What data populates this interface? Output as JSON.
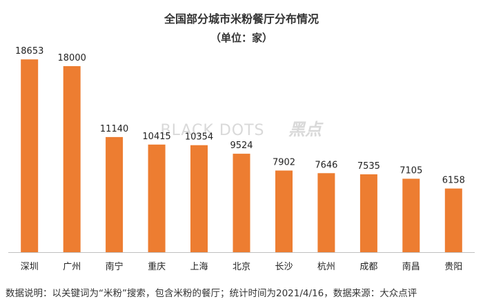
{
  "chart_data": {
    "type": "bar",
    "title": "全国部分城市米粉餐厅分布情况",
    "subtitle": "（单位：家）",
    "categories": [
      "深圳",
      "广州",
      "南宁",
      "重庆",
      "上海",
      "北京",
      "长沙",
      "杭州",
      "成都",
      "南昌",
      "贵阳"
    ],
    "values": [
      18653,
      18000,
      11140,
      10415,
      10354,
      9524,
      7902,
      7646,
      7535,
      7105,
      6158
    ],
    "ylim": [
      0,
      20000
    ],
    "grid": false,
    "legend": "none",
    "bar_color": "#ed7d31",
    "axis_color": "#bfbfbf"
  },
  "watermark": {
    "text": "BLACK DOTS",
    "text_cn": "黑点"
  },
  "footnote": "数据说明：以关键词为“米粉”搜索，包含米粉的餐厅；统计时间为2021/4/16，数据来源：大众点评"
}
